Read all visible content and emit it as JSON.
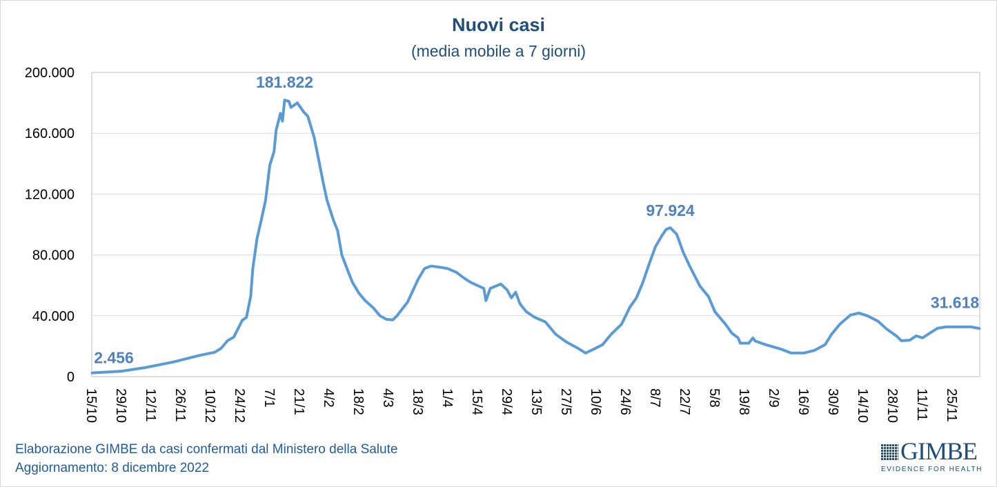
{
  "chart_data": {
    "type": "line",
    "title": "Nuovi casi",
    "subtitle": "(media mobile a 7 giorni)",
    "xlabel": "",
    "ylabel": "",
    "ylim": [
      0,
      200000
    ],
    "xlim": [
      "2021-10-15",
      "2022-12-08"
    ],
    "grid": true,
    "y_ticks": [
      "0",
      "40.000",
      "80.000",
      "120.000",
      "160.000",
      "200.000"
    ],
    "x_ticks": [
      "15/10",
      "29/10",
      "12/11",
      "26/11",
      "10/12",
      "24/12",
      "7/1",
      "21/1",
      "4/2",
      "18/2",
      "4/3",
      "18/3",
      "1/4",
      "15/4",
      "29/4",
      "13/5",
      "27/5",
      "10/6",
      "24/6",
      "8/7",
      "22/7",
      "5/8",
      "19/8",
      "2/9",
      "16/9",
      "30/9",
      "14/10",
      "28/10",
      "11/11",
      "25/11"
    ],
    "line_color": "#5b9bd5",
    "label_color": "#4f81bd",
    "annotations": [
      {
        "text": "2.456",
        "x": "2021-10-15",
        "y": 2456
      },
      {
        "text": "181.822",
        "x": "2022-01-14",
        "y": 181822
      },
      {
        "text": "97.924",
        "x": "2022-07-15",
        "y": 97924
      },
      {
        "text": "31.618",
        "x": "2022-12-08",
        "y": 31618
      }
    ],
    "series": [
      {
        "x": [
          "2021-10-15",
          "2021-10-29",
          "2021-11-09",
          "2021-11-22",
          "2021-12-05",
          "2021-12-12",
          "2021-12-15",
          "2021-12-18",
          "2021-12-21",
          "2021-12-25",
          "2021-12-27",
          "2021-12-29",
          "2021-12-30",
          "2022-01-01",
          "2022-01-03",
          "2022-01-05",
          "2022-01-07",
          "2022-01-09",
          "2022-01-10",
          "2022-01-12",
          "2022-01-13",
          "2022-01-14",
          "2022-01-16",
          "2022-01-17",
          "2022-01-20",
          "2022-01-23",
          "2022-01-25",
          "2022-01-28",
          "2022-01-30",
          "2022-02-01",
          "2022-02-03",
          "2022-02-06",
          "2022-02-08",
          "2022-02-10",
          "2022-02-13",
          "2022-02-15",
          "2022-02-18",
          "2022-02-21",
          "2022-02-25",
          "2022-02-28",
          "2022-03-03",
          "2022-03-06",
          "2022-03-08",
          "2022-03-13",
          "2022-03-18",
          "2022-03-21",
          "2022-03-24",
          "2022-03-29",
          "2022-04-01",
          "2022-04-05",
          "2022-04-09",
          "2022-04-12",
          "2022-04-18",
          "2022-04-19",
          "2022-04-21",
          "2022-04-26",
          "2022-04-29",
          "2022-05-01",
          "2022-05-03",
          "2022-05-05",
          "2022-05-08",
          "2022-05-12",
          "2022-05-17",
          "2022-05-22",
          "2022-05-27",
          "2022-06-01",
          "2022-06-05",
          "2022-06-09",
          "2022-06-13",
          "2022-06-17",
          "2022-06-22",
          "2022-06-26",
          "2022-06-29",
          "2022-07-02",
          "2022-07-05",
          "2022-07-08",
          "2022-07-11",
          "2022-07-13",
          "2022-07-15",
          "2022-07-18",
          "2022-07-21",
          "2022-07-24",
          "2022-07-29",
          "2022-08-02",
          "2022-08-05",
          "2022-08-10",
          "2022-08-13",
          "2022-08-16",
          "2022-08-17",
          "2022-08-21",
          "2022-08-23",
          "2022-08-24",
          "2022-08-29",
          "2022-09-05",
          "2022-09-10",
          "2022-09-16",
          "2022-09-21",
          "2022-09-26",
          "2022-09-29",
          "2022-10-03",
          "2022-10-08",
          "2022-10-12",
          "2022-10-16",
          "2022-10-21",
          "2022-10-25",
          "2022-10-30",
          "2022-11-01",
          "2022-11-05",
          "2022-11-08",
          "2022-11-11",
          "2022-11-14",
          "2022-11-18",
          "2022-11-22",
          "2022-11-28",
          "2022-12-04",
          "2022-12-08"
        ],
        "y": [
          2456,
          3600,
          5900,
          9500,
          14000,
          16000,
          18600,
          23600,
          26000,
          37000,
          39000,
          53000,
          71000,
          91000,
          103000,
          116000,
          139000,
          148000,
          162000,
          173000,
          168000,
          181822,
          181000,
          177000,
          180000,
          174000,
          171000,
          157000,
          143000,
          129000,
          116000,
          103000,
          96000,
          80000,
          69000,
          62000,
          55000,
          50000,
          45000,
          40000,
          37700,
          37300,
          40000,
          49000,
          64000,
          71000,
          72700,
          71800,
          71000,
          68600,
          64500,
          61800,
          58000,
          50000,
          58000,
          60900,
          57000,
          51800,
          55500,
          48000,
          42700,
          39000,
          36000,
          27700,
          22700,
          19000,
          15500,
          18200,
          21000,
          27700,
          34500,
          45900,
          51800,
          61800,
          74000,
          85500,
          92700,
          96800,
          97924,
          93600,
          82000,
          73000,
          59500,
          52700,
          42700,
          34500,
          28600,
          25500,
          22000,
          22000,
          25500,
          23500,
          21000,
          18200,
          15500,
          15500,
          17300,
          21000,
          27700,
          34500,
          40500,
          41800,
          40000,
          36400,
          31400,
          26400,
          23600,
          24000,
          26800,
          25500,
          28200,
          31800,
          32700,
          32700,
          32700,
          31618
        ]
      }
    ]
  },
  "footer": {
    "line1": "Elaborazione GIMBE da casi confermati dal Ministero della Salute",
    "line2": "Aggiornamento: 8 dicembre 2022"
  },
  "logo": {
    "name": "GIMBE",
    "tagline": "EVIDENCE FOR HEALTH"
  }
}
